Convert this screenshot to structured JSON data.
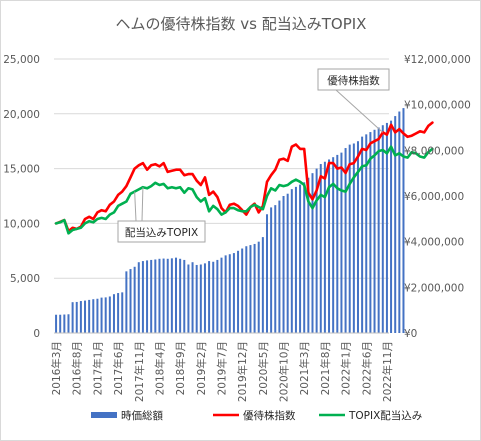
{
  "chart_data": {
    "type": "bar",
    "title": "ヘムの優待株指数 vs 配当込みTOPIX",
    "left_axis": {
      "ylim": [
        0,
        25000
      ],
      "ticks": [
        "0",
        "5,000",
        "10,000",
        "15,000",
        "20,000",
        "25,000"
      ]
    },
    "right_axis": {
      "ylim": [
        0,
        12000000
      ],
      "ticks": [
        "¥0",
        "¥2,000,000",
        "¥4,000,000",
        "¥6,000,000",
        "¥8,000,000",
        "¥10,000,000",
        "¥12,000,000"
      ]
    },
    "x_tick_labels": [
      "2016年3月",
      "2016年8月",
      "2017年1月",
      "2017年6月",
      "2017年11月",
      "2018年4月",
      "2018年9月",
      "2019年2月",
      "2019年7月",
      "2019年12月",
      "2020年5月",
      "2020年10月",
      "2021年3月",
      "2021年8月",
      "2022年1月",
      "2022年6月",
      "2022年11月"
    ],
    "x_start": "2016-03",
    "series": [
      {
        "name": "時価総額",
        "type": "bar",
        "axis": "right",
        "color": "#4472c4",
        "values": [
          800000,
          800000,
          810000,
          820000,
          1350000,
          1360000,
          1400000,
          1420000,
          1450000,
          1480000,
          1500000,
          1550000,
          1560000,
          1600000,
          1700000,
          1750000,
          1780000,
          2700000,
          2800000,
          2900000,
          3100000,
          3150000,
          3180000,
          3200000,
          3220000,
          3250000,
          3260000,
          3250000,
          3270000,
          3300000,
          3250000,
          3200000,
          3000000,
          3100000,
          2980000,
          3000000,
          3050000,
          3150000,
          3120000,
          3200000,
          3300000,
          3400000,
          3450000,
          3500000,
          3600000,
          3700000,
          3800000,
          3850000,
          3900000,
          4000000,
          4200000,
          5200000,
          5500000,
          5600000,
          5800000,
          6000000,
          6100000,
          6300000,
          6400000,
          6500000,
          6600000,
          6800000,
          7000000,
          7200000,
          7400000,
          7500000,
          7600000,
          7700000,
          7800000,
          7900000,
          8100000,
          8250000,
          8300000,
          8400000,
          8600000,
          8700000,
          8800000,
          8900000,
          9000000,
          9100000,
          9200000,
          9300000,
          9500000,
          9700000,
          9850000
        ]
      },
      {
        "name": "優待株指数",
        "type": "line",
        "axis": "left",
        "color": "#ff0000",
        "values": [
          10000,
          10150,
          10300,
          9300,
          9600,
          9500,
          9700,
          10400,
          10600,
          10400,
          11000,
          11200,
          11100,
          11700,
          12000,
          12600,
          12900,
          13400,
          14200,
          15000,
          15300,
          15500,
          14900,
          15300,
          15400,
          15200,
          15500,
          14700,
          14800,
          14900,
          14900,
          14400,
          14500,
          14500,
          13900,
          13500,
          14200,
          12600,
          12900,
          12400,
          11400,
          11000,
          11700,
          11800,
          11600,
          11200,
          10800,
          11500,
          11800,
          11000,
          11600,
          13800,
          14400,
          14900,
          15800,
          15900,
          15700,
          17000,
          17200,
          16800,
          16800,
          12800,
          12200,
          13000,
          14300,
          14100,
          15500,
          15500,
          15000,
          15100,
          14600,
          15400,
          15500,
          16100,
          16800,
          16700,
          17300,
          17500,
          17700,
          18300,
          18100,
          19000,
          18300,
          18600,
          18200,
          17900,
          18000,
          18200,
          18400,
          18300,
          18900,
          19200
        ]
      },
      {
        "name": "TOPIX配当込み",
        "type": "line",
        "axis": "left",
        "color": "#00b050",
        "values": [
          10000,
          10100,
          10300,
          9100,
          9400,
          9500,
          9600,
          10000,
          10200,
          10100,
          10400,
          10500,
          10400,
          10800,
          11000,
          11600,
          11800,
          12000,
          12700,
          12900,
          13100,
          13300,
          13200,
          13400,
          13700,
          13500,
          13600,
          13200,
          13300,
          13200,
          13300,
          12800,
          13200,
          13100,
          12400,
          12000,
          12300,
          11100,
          11600,
          11300,
          10800,
          11000,
          11400,
          11400,
          11200,
          11100,
          11100,
          11500,
          11700,
          11500,
          11300,
          12500,
          13200,
          13000,
          13500,
          13400,
          13500,
          13800,
          14000,
          13800,
          13500,
          12000,
          11400,
          12100,
          12600,
          12400,
          13300,
          13600,
          13200,
          13000,
          12900,
          13600,
          14200,
          14700,
          15200,
          15300,
          15900,
          16200,
          16600,
          16700,
          16400,
          17000,
          16200,
          16400,
          16100,
          16000,
          16500,
          16400,
          16100,
          16000,
          16500,
          16800
        ]
      }
    ],
    "annotations": [
      {
        "label": "優待株指数",
        "series_index": 1,
        "point_index": 79
      },
      {
        "label": "配当込みTOPIX",
        "series_index": 2,
        "point_index": 19
      }
    ],
    "legend_position": "bottom",
    "grid": true
  }
}
